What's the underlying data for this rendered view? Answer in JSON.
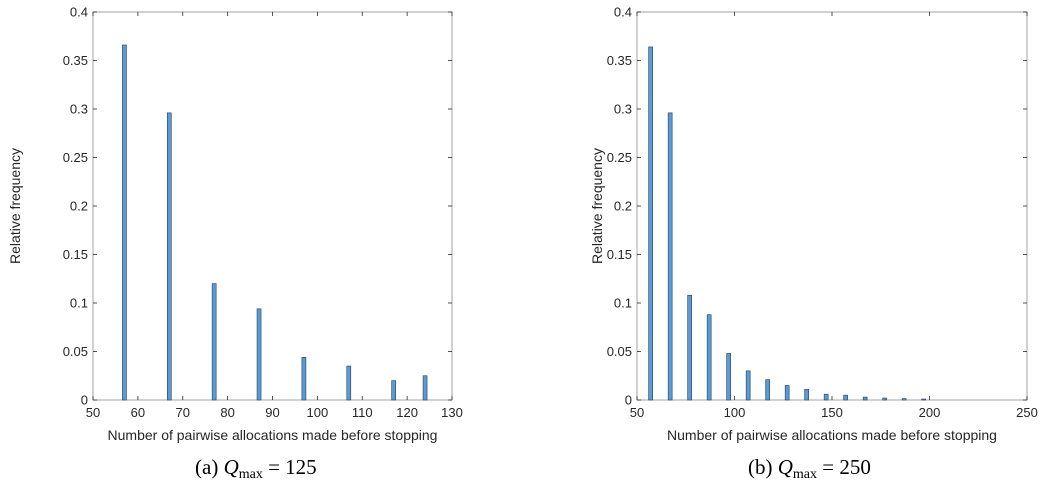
{
  "colors": {
    "bar_fill": "#5b9bd5",
    "bar_edge": "#1f3f5e",
    "axis": "#262626"
  },
  "chart_data": [
    {
      "type": "bar",
      "xlabel": "Number of pairwise allocations made before stopping",
      "ylabel": "Relative frequency",
      "xlim": [
        50,
        130
      ],
      "ylim": [
        0,
        0.4
      ],
      "xticks": [
        50,
        60,
        70,
        80,
        90,
        100,
        110,
        120,
        130
      ],
      "yticks": [
        0,
        0.05,
        0.1,
        0.15,
        0.2,
        0.25,
        0.3,
        0.35,
        0.4
      ],
      "grid": false,
      "x": [
        57,
        67,
        77,
        87,
        97,
        107,
        117,
        124
      ],
      "values": [
        0.366,
        0.296,
        0.12,
        0.094,
        0.044,
        0.035,
        0.02,
        0.025
      ],
      "caption": {
        "prefix": "(a) ",
        "var": "Q",
        "sub": "max",
        "rest": " = 125"
      }
    },
    {
      "type": "bar",
      "xlabel": "Number of pairwise allocations made before stopping",
      "ylabel": "Relative frequency",
      "xlim": [
        50,
        250
      ],
      "ylim": [
        0,
        0.4
      ],
      "xticks": [
        50,
        100,
        150,
        200,
        250
      ],
      "yticks": [
        0,
        0.05,
        0.1,
        0.15,
        0.2,
        0.25,
        0.3,
        0.35,
        0.4
      ],
      "grid": false,
      "x": [
        57,
        67,
        77,
        87,
        97,
        107,
        117,
        127,
        137,
        147,
        157,
        167,
        177,
        187,
        197
      ],
      "values": [
        0.364,
        0.296,
        0.108,
        0.088,
        0.048,
        0.03,
        0.021,
        0.015,
        0.011,
        0.006,
        0.005,
        0.003,
        0.002,
        0.0015,
        0.001
      ],
      "caption": {
        "prefix": "(b) ",
        "var": "Q",
        "sub": "max",
        "rest": " = 250"
      }
    }
  ]
}
